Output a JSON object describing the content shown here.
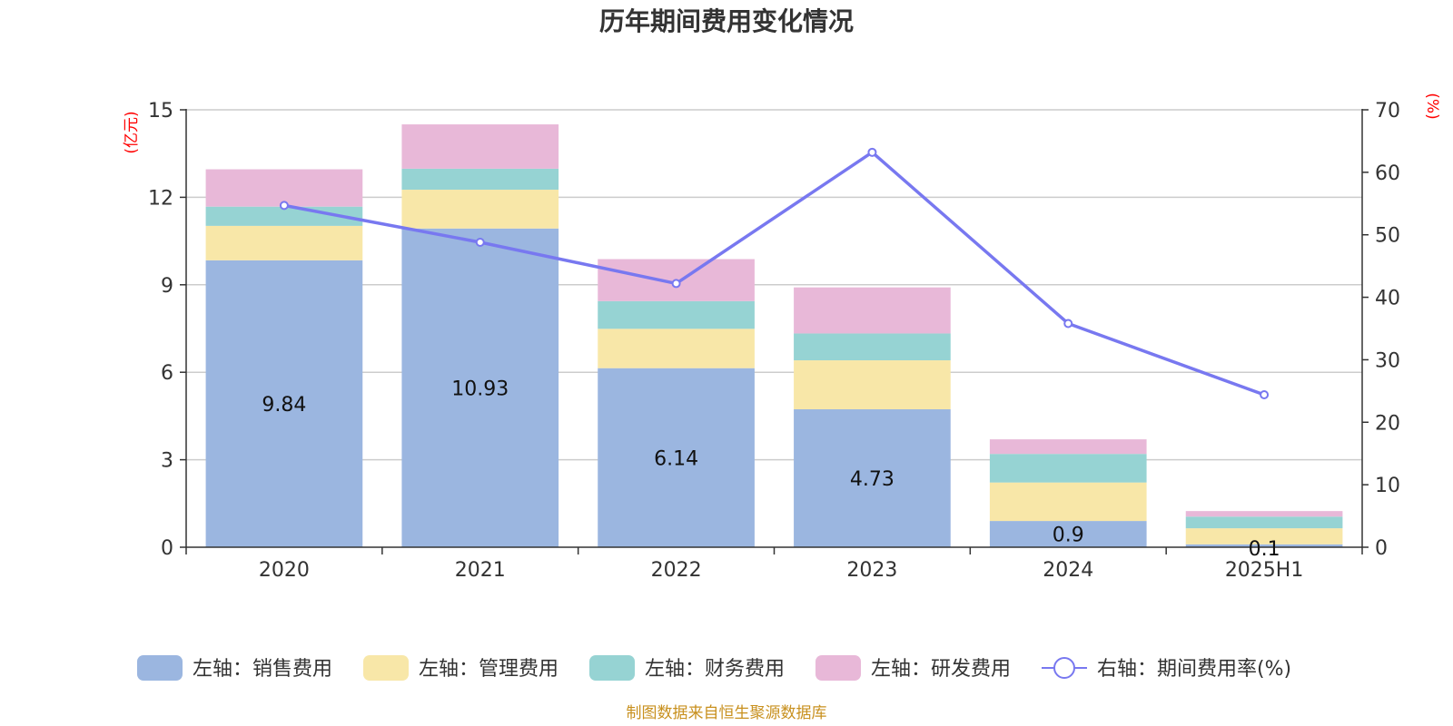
{
  "chart_data": {
    "type": "bar",
    "title": "历年期间费用变化情况",
    "categories": [
      "2020",
      "2021",
      "2022",
      "2023",
      "2024",
      "2025H1"
    ],
    "left_axis": {
      "unit": "(亿元)",
      "ylim": [
        0,
        15
      ],
      "ticks": [
        "0",
        "3",
        "6",
        "9",
        "12",
        "15"
      ]
    },
    "right_axis": {
      "unit": "(%)",
      "ylim": [
        0,
        70
      ],
      "ticks": [
        "0",
        "10",
        "20",
        "30",
        "40",
        "50",
        "60",
        "70"
      ]
    },
    "stacked": true,
    "grid": true,
    "legend_position": "bottom",
    "series": [
      {
        "name": "左轴：销售费用",
        "axis": "left",
        "type": "bar",
        "color": "#9bb6e0",
        "values": [
          9.84,
          10.93,
          6.14,
          4.73,
          0.9,
          0.1
        ],
        "labels": [
          "9.84",
          "10.93",
          "6.14",
          "4.73",
          "0.9",
          "0.1"
        ]
      },
      {
        "name": "左轴：管理费用",
        "axis": "left",
        "type": "bar",
        "color": "#f8e7a8",
        "values": [
          1.18,
          1.33,
          1.35,
          1.68,
          1.32,
          0.55
        ]
      },
      {
        "name": "左轴：财务费用",
        "axis": "left",
        "type": "bar",
        "color": "#96d3d3",
        "values": [
          0.66,
          0.72,
          0.95,
          0.92,
          0.98,
          0.4
        ]
      },
      {
        "name": "左轴：研发费用",
        "axis": "left",
        "type": "bar",
        "color": "#e8b8d8",
        "values": [
          1.28,
          1.52,
          1.44,
          1.58,
          0.5,
          0.19
        ]
      },
      {
        "name": "右轴：期间费用率(%)",
        "axis": "right",
        "type": "line",
        "color": "#7878f0",
        "values": [
          54.7,
          48.8,
          42.2,
          63.2,
          35.8,
          24.4
        ]
      }
    ]
  },
  "source": "制图数据来自恒生聚源数据库"
}
